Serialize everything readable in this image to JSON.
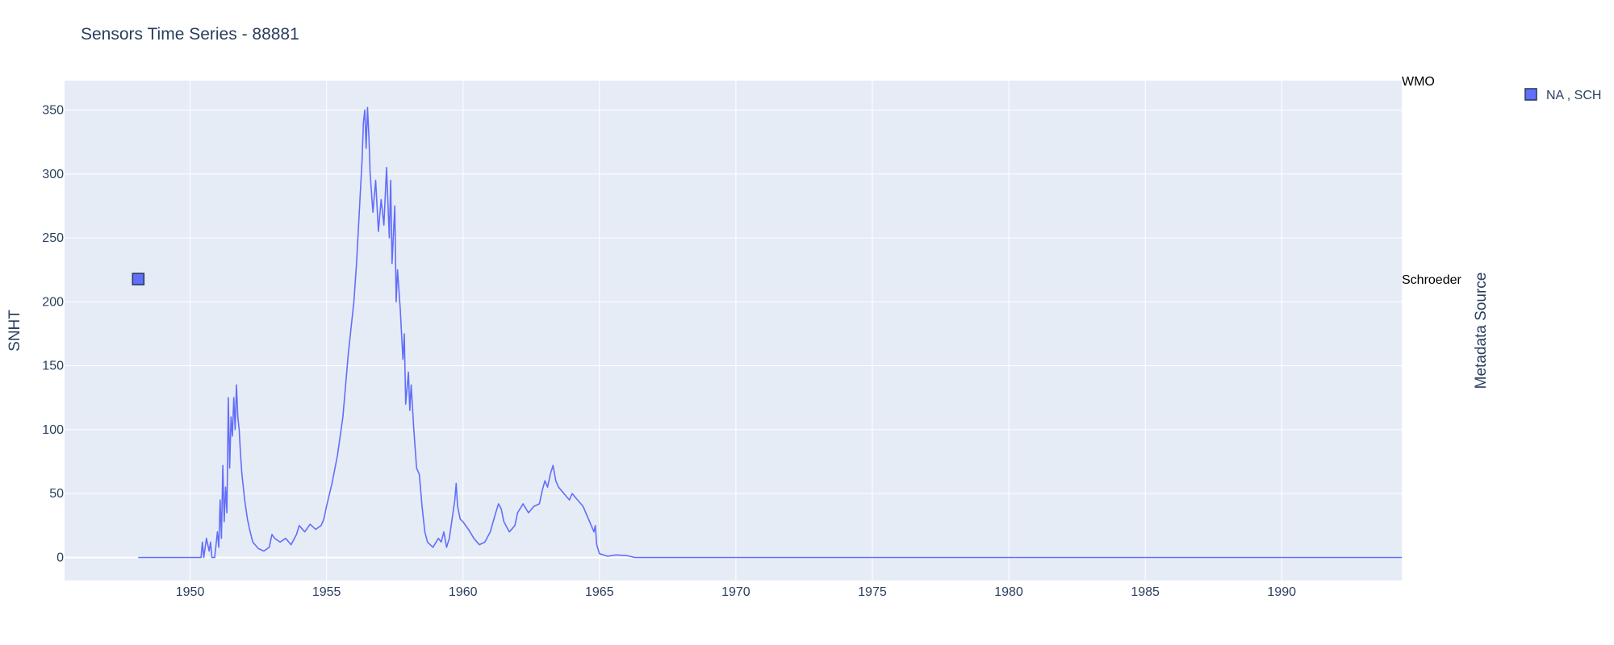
{
  "chart_data": {
    "type": "line",
    "title": "Sensors Time Series - 88881",
    "ylabel": "SNHT",
    "y2label": "Metadata Source",
    "xlim": [
      1945.4,
      1994.4
    ],
    "ylim": [
      -18,
      373
    ],
    "x_ticks": [
      1950,
      1955,
      1960,
      1965,
      1970,
      1975,
      1980,
      1985,
      1990
    ],
    "y_ticks": [
      0,
      50,
      100,
      150,
      200,
      250,
      300,
      350
    ],
    "y2_categories": [
      "WMO",
      "Schroeder"
    ],
    "grid": true,
    "legend_position": "top-right",
    "colors": {
      "series": "#636efa",
      "plot_bg": "#e5ecf6",
      "grid": "#ffffff"
    },
    "series": [
      {
        "name": "SNHT",
        "type": "line",
        "points": [
          [
            1948.1,
            0
          ],
          [
            1950.4,
            0
          ],
          [
            1950.45,
            12
          ],
          [
            1950.5,
            0
          ],
          [
            1950.6,
            15
          ],
          [
            1950.7,
            5
          ],
          [
            1950.75,
            12
          ],
          [
            1950.8,
            0
          ],
          [
            1950.9,
            0
          ],
          [
            1951.0,
            20
          ],
          [
            1951.05,
            8
          ],
          [
            1951.1,
            45
          ],
          [
            1951.15,
            15
          ],
          [
            1951.2,
            72
          ],
          [
            1951.25,
            28
          ],
          [
            1951.3,
            55
          ],
          [
            1951.35,
            35
          ],
          [
            1951.4,
            125
          ],
          [
            1951.45,
            70
          ],
          [
            1951.5,
            110
          ],
          [
            1951.55,
            95
          ],
          [
            1951.6,
            125
          ],
          [
            1951.65,
            100
          ],
          [
            1951.7,
            135
          ],
          [
            1951.75,
            110
          ],
          [
            1951.8,
            100
          ],
          [
            1951.85,
            80
          ],
          [
            1951.9,
            65
          ],
          [
            1952.0,
            45
          ],
          [
            1952.1,
            30
          ],
          [
            1952.2,
            20
          ],
          [
            1952.3,
            12
          ],
          [
            1952.5,
            7
          ],
          [
            1952.7,
            5
          ],
          [
            1952.9,
            8
          ],
          [
            1953.0,
            18
          ],
          [
            1953.1,
            15
          ],
          [
            1953.3,
            12
          ],
          [
            1953.5,
            15
          ],
          [
            1953.7,
            10
          ],
          [
            1953.9,
            18
          ],
          [
            1954.0,
            25
          ],
          [
            1954.2,
            20
          ],
          [
            1954.4,
            26
          ],
          [
            1954.6,
            22
          ],
          [
            1954.8,
            25
          ],
          [
            1954.9,
            30
          ],
          [
            1955.0,
            40
          ],
          [
            1955.2,
            58
          ],
          [
            1955.4,
            80
          ],
          [
            1955.6,
            110
          ],
          [
            1955.8,
            160
          ],
          [
            1956.0,
            200
          ],
          [
            1956.1,
            230
          ],
          [
            1956.2,
            270
          ],
          [
            1956.3,
            310
          ],
          [
            1956.35,
            340
          ],
          [
            1956.4,
            350
          ],
          [
            1956.45,
            320
          ],
          [
            1956.5,
            352
          ],
          [
            1956.55,
            330
          ],
          [
            1956.6,
            300
          ],
          [
            1956.7,
            270
          ],
          [
            1956.8,
            295
          ],
          [
            1956.9,
            255
          ],
          [
            1957.0,
            280
          ],
          [
            1957.1,
            260
          ],
          [
            1957.2,
            305
          ],
          [
            1957.3,
            250
          ],
          [
            1957.35,
            295
          ],
          [
            1957.4,
            230
          ],
          [
            1957.5,
            275
          ],
          [
            1957.55,
            200
          ],
          [
            1957.6,
            225
          ],
          [
            1957.7,
            195
          ],
          [
            1957.8,
            155
          ],
          [
            1957.85,
            175
          ],
          [
            1957.9,
            120
          ],
          [
            1958.0,
            145
          ],
          [
            1958.05,
            115
          ],
          [
            1958.1,
            135
          ],
          [
            1958.2,
            100
          ],
          [
            1958.3,
            70
          ],
          [
            1958.4,
            65
          ],
          [
            1958.5,
            40
          ],
          [
            1958.6,
            20
          ],
          [
            1958.7,
            12
          ],
          [
            1958.9,
            8
          ],
          [
            1959.1,
            15
          ],
          [
            1959.2,
            12
          ],
          [
            1959.3,
            20
          ],
          [
            1959.4,
            8
          ],
          [
            1959.5,
            15
          ],
          [
            1959.6,
            30
          ],
          [
            1959.7,
            45
          ],
          [
            1959.75,
            58
          ],
          [
            1959.8,
            40
          ],
          [
            1959.9,
            30
          ],
          [
            1960.0,
            28
          ],
          [
            1960.2,
            22
          ],
          [
            1960.4,
            15
          ],
          [
            1960.6,
            10
          ],
          [
            1960.8,
            12
          ],
          [
            1961.0,
            20
          ],
          [
            1961.2,
            35
          ],
          [
            1961.3,
            42
          ],
          [
            1961.4,
            38
          ],
          [
            1961.5,
            28
          ],
          [
            1961.7,
            20
          ],
          [
            1961.9,
            25
          ],
          [
            1962.0,
            35
          ],
          [
            1962.2,
            42
          ],
          [
            1962.4,
            35
          ],
          [
            1962.6,
            40
          ],
          [
            1962.8,
            42
          ],
          [
            1962.9,
            52
          ],
          [
            1963.0,
            60
          ],
          [
            1963.1,
            55
          ],
          [
            1963.2,
            65
          ],
          [
            1963.3,
            72
          ],
          [
            1963.4,
            60
          ],
          [
            1963.5,
            55
          ],
          [
            1963.7,
            50
          ],
          [
            1963.9,
            45
          ],
          [
            1964.0,
            50
          ],
          [
            1964.2,
            45
          ],
          [
            1964.4,
            40
          ],
          [
            1964.5,
            35
          ],
          [
            1964.6,
            30
          ],
          [
            1964.7,
            25
          ],
          [
            1964.8,
            20
          ],
          [
            1964.85,
            25
          ],
          [
            1964.9,
            10
          ],
          [
            1965.0,
            3
          ],
          [
            1965.3,
            1
          ],
          [
            1965.6,
            2
          ],
          [
            1966.0,
            1.5
          ],
          [
            1966.3,
            0
          ],
          [
            1994.4,
            0
          ]
        ]
      },
      {
        "name": "NA , SCH",
        "type": "scatter",
        "axis": "y2",
        "marker": "square",
        "points": [
          {
            "x": 1948.1,
            "category": "Schroeder"
          }
        ]
      }
    ]
  }
}
